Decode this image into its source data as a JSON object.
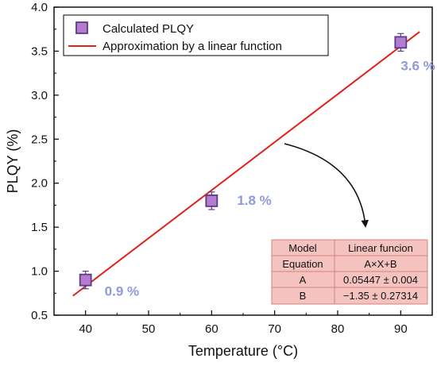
{
  "chart_data": {
    "type": "scatter",
    "xlabel": "Temperature (°C)",
    "ylabel": "PLQY (%)",
    "xlim": [
      35,
      95
    ],
    "ylim": [
      0.5,
      4.0
    ],
    "x_ticks": [
      40,
      50,
      60,
      70,
      80,
      90
    ],
    "y_ticks": [
      0.5,
      1.0,
      1.5,
      2.0,
      2.5,
      3.0,
      3.5,
      4.0
    ],
    "x_tick_labels": [
      "40",
      "50",
      "60",
      "70",
      "80",
      "90"
    ],
    "y_tick_labels": [
      "0.5",
      "1.0",
      "1.5",
      "2.0",
      "2.5",
      "3.0",
      "3.5",
      "4.0"
    ],
    "grid": false,
    "legend_position": "top-left",
    "series": [
      {
        "name": "Calculated PLQY",
        "kind": "points",
        "x": [
          40,
          60,
          90
        ],
        "y": [
          0.9,
          1.8,
          3.6
        ],
        "y_error": [
          0.1,
          0.1,
          0.1
        ],
        "point_labels": [
          "0.9 %",
          "1.8 %",
          "3.6 %"
        ],
        "marker_fill": "#b57bd1",
        "marker_edge": "#5a3b86",
        "label_color": "#8f9ad9"
      },
      {
        "name": "Approximation by a linear function",
        "kind": "line",
        "x": [
          38,
          93
        ],
        "y": [
          0.72,
          3.72
        ],
        "color": "#e0201b"
      }
    ],
    "fit_table": {
      "header": [
        "Model",
        "Linear funcion"
      ],
      "rows": [
        [
          "Equation",
          "A×X+B"
        ],
        [
          "A",
          "0.05447 ± 0.004"
        ],
        [
          "B",
          "−1.35 ± 0.27314"
        ]
      ],
      "fill": "#f4c3bf",
      "border": "#d9837c"
    }
  }
}
